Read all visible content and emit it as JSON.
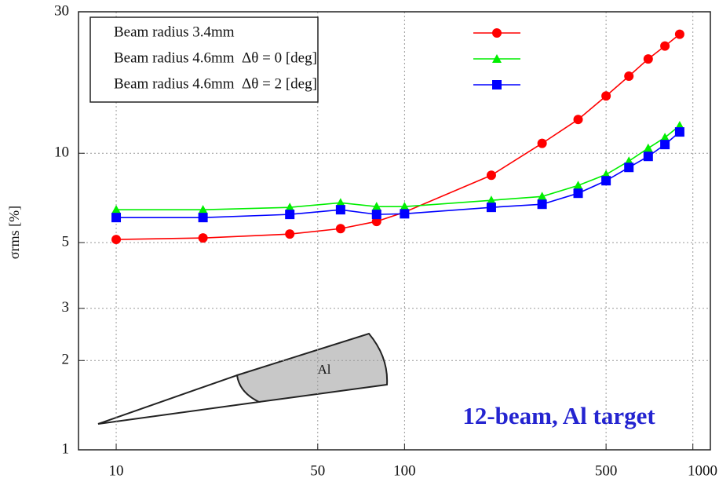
{
  "chart_data": {
    "type": "line",
    "x": [
      10,
      20,
      40,
      60,
      80,
      100,
      200,
      300,
      400,
      500,
      600,
      700,
      800,
      900
    ],
    "series": [
      {
        "name": "Beam radius 3.4mm",
        "color": "#ff0000",
        "marker": "circle",
        "values": [
          5.12,
          5.18,
          5.34,
          5.57,
          5.89,
          6.33,
          8.43,
          10.8,
          13.0,
          15.6,
          18.2,
          20.8,
          23.0,
          25.2
        ]
      },
      {
        "name": "Beam radius 4.6mm  Δθ = 0 [deg]",
        "color": "#00ee00",
        "marker": "triangle",
        "values": [
          6.45,
          6.45,
          6.57,
          6.81,
          6.61,
          6.61,
          6.94,
          7.15,
          7.79,
          8.48,
          9.41,
          10.4,
          11.3,
          12.4
        ]
      },
      {
        "name": "Beam radius 4.6mm  Δθ = 2 [deg]",
        "color": "#0000ff",
        "marker": "square",
        "values": [
          6.07,
          6.07,
          6.22,
          6.45,
          6.22,
          6.25,
          6.57,
          6.73,
          7.33,
          8.08,
          8.96,
          9.76,
          10.7,
          11.8
        ]
      }
    ],
    "ylabel": "σrms [%]",
    "annotation": "12-beam, Al target",
    "inset_label": "Al",
    "xlim": [
      7.4,
      1150
    ],
    "ylim": [
      1,
      30
    ],
    "xticks": [
      10,
      50,
      100,
      500,
      1000
    ],
    "yticks": [
      1,
      2,
      3,
      5,
      10,
      30
    ],
    "xscale": "log",
    "yscale": "log",
    "grid": true,
    "legend": "upper left"
  }
}
